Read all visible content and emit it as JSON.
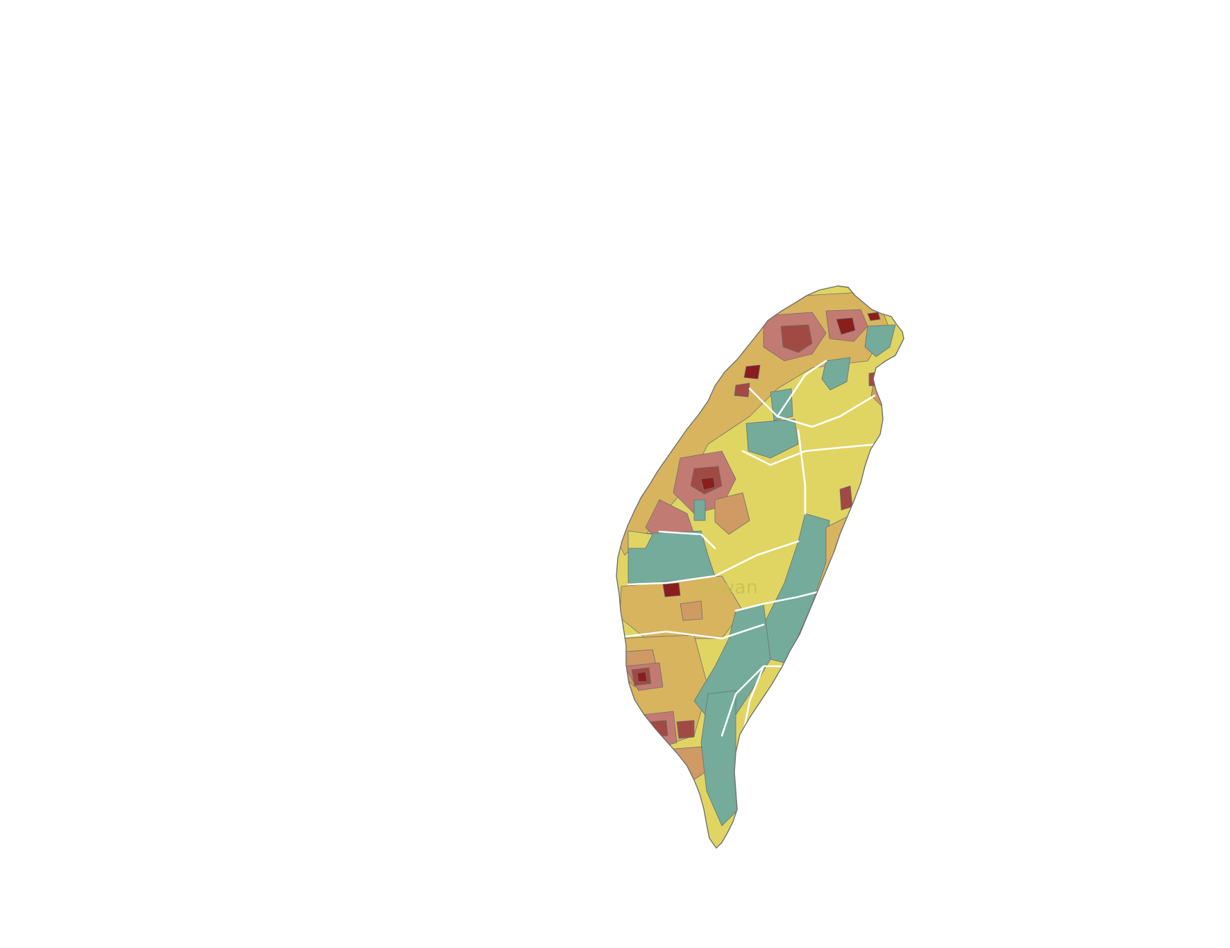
{
  "map": {
    "label": "Taiwan",
    "colors": {
      "yellow": "#e0d563",
      "ochre": "#d8b45f",
      "tan": "#cf9a63",
      "rose": "#c27b72",
      "brick": "#a04a43",
      "dark_red": "#8a1e1e",
      "teal": "#74ab9a",
      "outline": "#6e6e6e",
      "county_border": "#ffffff"
    },
    "icons": [
      "map-shape"
    ]
  }
}
